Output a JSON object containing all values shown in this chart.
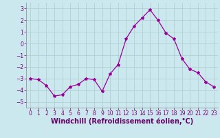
{
  "x": [
    0,
    1,
    2,
    3,
    4,
    5,
    6,
    7,
    8,
    9,
    10,
    11,
    12,
    13,
    14,
    15,
    16,
    17,
    18,
    19,
    20,
    21,
    22,
    23
  ],
  "y": [
    -3.0,
    -3.1,
    -3.6,
    -4.5,
    -4.4,
    -3.7,
    -3.5,
    -3.0,
    -3.1,
    -4.1,
    -2.6,
    -1.8,
    0.4,
    1.5,
    2.2,
    2.9,
    2.0,
    0.9,
    0.4,
    -1.3,
    -2.2,
    -2.5,
    -3.3,
    -3.7
  ],
  "line_color": "#990099",
  "marker": "*",
  "marker_size": 3,
  "bg_color": "#cce8ef",
  "grid_color": "#aacccc",
  "xlabel": "Windchill (Refroidissement éolien,°C)",
  "xlim": [
    -0.5,
    23.5
  ],
  "ylim": [
    -5.5,
    3.5
  ],
  "yticks": [
    -5,
    -4,
    -3,
    -2,
    -1,
    0,
    1,
    2,
    3
  ],
  "xticks": [
    0,
    1,
    2,
    3,
    4,
    5,
    6,
    7,
    8,
    9,
    10,
    11,
    12,
    13,
    14,
    15,
    16,
    17,
    18,
    19,
    20,
    21,
    22,
    23
  ],
  "tick_label_color": "#770077",
  "tick_fontsize": 5.5,
  "xlabel_fontsize": 7.0,
  "label_color": "#660066"
}
